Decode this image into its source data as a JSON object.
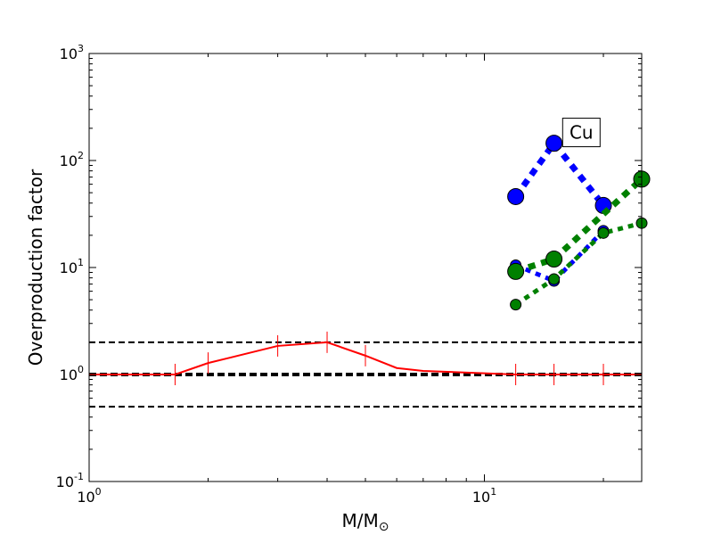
{
  "chart_data": {
    "type": "line",
    "xscale": "log",
    "yscale": "log",
    "xlim": [
      1,
      25
    ],
    "ylim": [
      0.1,
      1000
    ],
    "xlabel": "M/M",
    "xlabel_sub": "⊙",
    "ylabel": "Overproduction factor",
    "grid": false,
    "x_ticks": [
      {
        "value": 1,
        "base": "10",
        "exp": "0"
      },
      {
        "value": 10,
        "base": "10",
        "exp": "1"
      }
    ],
    "y_ticks": [
      {
        "value": 0.1,
        "base": "10",
        "exp": "-1"
      },
      {
        "value": 1,
        "base": "10",
        "exp": "0"
      },
      {
        "value": 10,
        "base": "10",
        "exp": "1"
      },
      {
        "value": 100,
        "base": "10",
        "exp": "2"
      },
      {
        "value": 1000,
        "base": "10",
        "exp": "3"
      }
    ],
    "reference_lines": [
      {
        "y": 2,
        "style": "dashed",
        "color": "#000000",
        "width": "thin"
      },
      {
        "y": 1,
        "style": "dashed",
        "color": "#000000",
        "width": "thick"
      },
      {
        "y": 0.5,
        "style": "dashed",
        "color": "#000000",
        "width": "thin"
      }
    ],
    "series": [
      {
        "color": "#ff0000",
        "style": "solid",
        "marker": "vline",
        "x": [
          1,
          1.65,
          2,
          3,
          4,
          5,
          6,
          7,
          12,
          15,
          20,
          25
        ],
        "y": [
          1.0,
          1.0,
          1.28,
          1.85,
          2.0,
          1.5,
          1.15,
          1.08,
          1.0,
          1.0,
          1.0,
          1.0
        ],
        "tick_x": [
          1.65,
          2,
          3,
          4,
          5,
          12,
          15,
          20
        ]
      },
      {
        "color": "#0000ff",
        "style": "dotted",
        "weight": "thick",
        "marker": "circle",
        "marker_size": "large",
        "x": [
          12,
          15,
          20
        ],
        "y": [
          46,
          145,
          38
        ]
      },
      {
        "color": "#0000ff",
        "style": "dotted",
        "weight": "medium",
        "marker": "circle",
        "marker_size": "small",
        "x": [
          12,
          15,
          20
        ],
        "y": [
          10.5,
          7.5,
          22
        ]
      },
      {
        "color": "#008000",
        "style": "dotted",
        "weight": "thick",
        "marker": "circle",
        "marker_size": "large",
        "x": [
          12,
          15,
          25
        ],
        "y": [
          9.2,
          12,
          67
        ]
      },
      {
        "color": "#008000",
        "style": "dotted",
        "weight": "medium",
        "marker": "circle",
        "marker_size": "small",
        "x": [
          12,
          15,
          20,
          25
        ],
        "y": [
          4.5,
          7.8,
          21,
          26
        ]
      }
    ],
    "annotation": {
      "text": "Cu",
      "x": 17.5,
      "y": 190
    }
  }
}
